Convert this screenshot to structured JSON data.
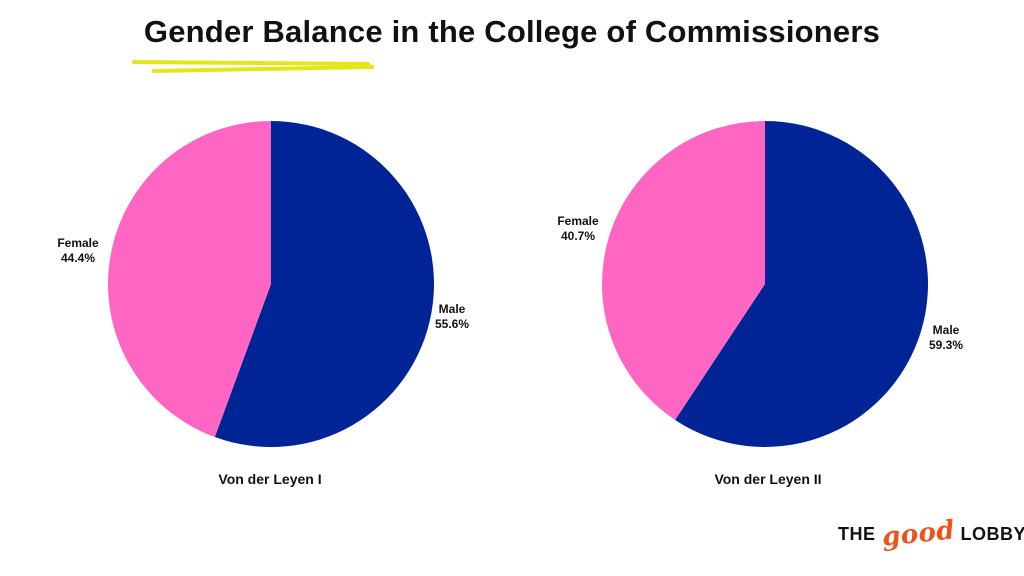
{
  "title": "Gender Balance in the College of Commissioners",
  "colors": {
    "female": "#ff66c4",
    "male": "#002395",
    "accent_underline": "#e3e61a"
  },
  "chart_data": [
    {
      "type": "pie",
      "title": "Von der Leyen I",
      "slices": [
        {
          "label": "Male",
          "value": 55.6,
          "value_label": "55.6%",
          "color": "#002395"
        },
        {
          "label": "Female",
          "value": 44.4,
          "value_label": "44.4%",
          "color": "#ff66c4"
        }
      ]
    },
    {
      "type": "pie",
      "title": "Von der Leyen II",
      "slices": [
        {
          "label": "Male",
          "value": 59.3,
          "value_label": "59.3%",
          "color": "#002395"
        },
        {
          "label": "Female",
          "value": 40.7,
          "value_label": "40.7%",
          "color": "#ff66c4"
        }
      ]
    }
  ],
  "logo": {
    "word1": "THE",
    "word2": "good",
    "word3": "LOBBY"
  }
}
